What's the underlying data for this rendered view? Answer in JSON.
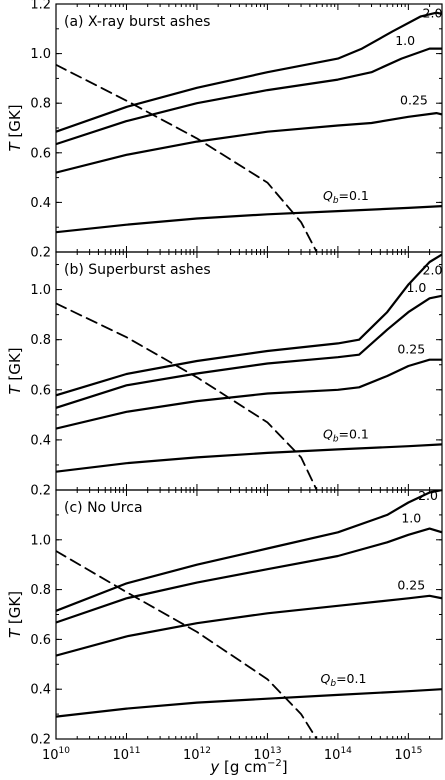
{
  "chart_data": {
    "type": "line",
    "xlabel_prefix": "y",
    "xlabel_unit": "[g cm",
    "xlabel_exp": "−2",
    "xlabel_close": "]",
    "ylabel_prefix": "T",
    "ylabel_unit": "[GK]",
    "xlog": true,
    "xlim": [
      10000000000.0,
      3000000000000000.0
    ],
    "x_ticks": [
      {
        "value": 10000000000.0,
        "exp": "10"
      },
      {
        "value": 100000000000.0,
        "exp": "11"
      },
      {
        "value": 1000000000000.0,
        "exp": "12"
      },
      {
        "value": 10000000000000.0,
        "exp": "13"
      },
      {
        "value": 100000000000000.0,
        "exp": "14"
      },
      {
        "value": 1000000000000000.0,
        "exp": "15"
      }
    ],
    "x_tick_base": "10",
    "panels": [
      {
        "title": "(a)  X-ray burst ashes",
        "ylim": [
          0.2,
          1.2
        ],
        "yticks": [
          "0.2",
          "0.4",
          "0.6",
          "0.8",
          "1.0",
          "1.2"
        ],
        "ytick_values": [
          0.2,
          0.4,
          0.6,
          0.8,
          1.0,
          1.2
        ],
        "series": [
          {
            "label": "2.0",
            "label_at": [
              2200000000000000.0,
              1.145
            ],
            "points": [
              [
                10000000000.0,
                0.685
              ],
              [
                100000000000.0,
                0.785
              ],
              [
                1000000000000.0,
                0.862
              ],
              [
                10000000000000.0,
                0.925
              ],
              [
                100000000000000.0,
                0.98
              ],
              [
                220000000000000.0,
                1.02
              ],
              [
                600000000000000.0,
                1.09
              ],
              [
                1500000000000000.0,
                1.15
              ],
              [
                2500000000000000.0,
                1.165
              ],
              [
                3000000000000000.0,
                1.16
              ]
            ]
          },
          {
            "label": "1.0",
            "label_at": [
              900000000000000.0,
              1.035
            ],
            "points": [
              [
                10000000000.0,
                0.635
              ],
              [
                100000000000.0,
                0.728
              ],
              [
                1000000000000.0,
                0.8
              ],
              [
                10000000000000.0,
                0.853
              ],
              [
                100000000000000.0,
                0.895
              ],
              [
                300000000000000.0,
                0.925
              ],
              [
                800000000000000.0,
                0.98
              ],
              [
                2000000000000000.0,
                1.02
              ],
              [
                3000000000000000.0,
                1.02
              ]
            ]
          },
          {
            "label": "0.25",
            "label_at": [
              1200000000000000.0,
              0.795
            ],
            "points": [
              [
                10000000000.0,
                0.52
              ],
              [
                100000000000.0,
                0.592
              ],
              [
                1000000000000.0,
                0.645
              ],
              [
                10000000000000.0,
                0.685
              ],
              [
                100000000000000.0,
                0.71
              ],
              [
                300000000000000.0,
                0.72
              ],
              [
                1000000000000000.0,
                0.745
              ],
              [
                2500000000000000.0,
                0.76
              ],
              [
                3000000000000000.0,
                0.755
              ]
            ]
          },
          {
            "label": "Q_b=0.1",
            "label_at": [
              130000000000000.0,
              0.41
            ],
            "points": [
              [
                10000000000.0,
                0.28
              ],
              [
                100000000000.0,
                0.31
              ],
              [
                1000000000000.0,
                0.335
              ],
              [
                10000000000000.0,
                0.352
              ],
              [
                100000000000000.0,
                0.365
              ],
              [
                1000000000000000.0,
                0.378
              ],
              [
                3000000000000000.0,
                0.385
              ]
            ]
          }
        ],
        "dashed": [
          [
            10000000000.0,
            0.955
          ],
          [
            100000000000.0,
            0.81
          ],
          [
            1000000000000.0,
            0.658
          ],
          [
            10000000000000.0,
            0.48
          ],
          [
            30000000000000.0,
            0.32
          ],
          [
            50000000000000.0,
            0.2
          ]
        ]
      },
      {
        "title": "(b)  Superburst ashes",
        "ylim": [
          0.2,
          1.15
        ],
        "yticks": [
          "0.2",
          "0.4",
          "0.6",
          "0.8",
          "1.0"
        ],
        "ytick_values": [
          0.2,
          0.4,
          0.6,
          0.8,
          1.0
        ],
        "series": [
          {
            "label": "2.0",
            "label_at": [
              2200000000000000.0,
              1.06
            ],
            "points": [
              [
                10000000000.0,
                0.578
              ],
              [
                100000000000.0,
                0.663
              ],
              [
                1000000000000.0,
                0.715
              ],
              [
                10000000000000.0,
                0.755
              ],
              [
                100000000000000.0,
                0.785
              ],
              [
                200000000000000.0,
                0.8
              ],
              [
                500000000000000.0,
                0.91
              ],
              [
                1000000000000000.0,
                1.02
              ],
              [
                2000000000000000.0,
                1.11
              ],
              [
                3000000000000000.0,
                1.14
              ]
            ]
          },
          {
            "label": "1.0",
            "label_at": [
              1300000000000000.0,
              0.99
            ],
            "points": [
              [
                10000000000.0,
                0.528
              ],
              [
                100000000000.0,
                0.618
              ],
              [
                1000000000000.0,
                0.665
              ],
              [
                10000000000000.0,
                0.705
              ],
              [
                100000000000000.0,
                0.73
              ],
              [
                200000000000000.0,
                0.74
              ],
              [
                500000000000000.0,
                0.84
              ],
              [
                1000000000000000.0,
                0.91
              ],
              [
                2000000000000000.0,
                0.965
              ],
              [
                3000000000000000.0,
                0.975
              ]
            ]
          },
          {
            "label": "0.25",
            "label_at": [
              1100000000000000.0,
              0.745
            ],
            "points": [
              [
                10000000000.0,
                0.445
              ],
              [
                100000000000.0,
                0.512
              ],
              [
                1000000000000.0,
                0.555
              ],
              [
                10000000000000.0,
                0.585
              ],
              [
                100000000000000.0,
                0.6
              ],
              [
                200000000000000.0,
                0.61
              ],
              [
                500000000000000.0,
                0.655
              ],
              [
                1000000000000000.0,
                0.695
              ],
              [
                2000000000000000.0,
                0.72
              ],
              [
                3000000000000000.0,
                0.72
              ]
            ]
          },
          {
            "label": "Q_b=0.1",
            "label_at": [
              130000000000000.0,
              0.405
            ],
            "points": [
              [
                10000000000.0,
                0.273
              ],
              [
                100000000000.0,
                0.307
              ],
              [
                1000000000000.0,
                0.33
              ],
              [
                10000000000000.0,
                0.348
              ],
              [
                100000000000000.0,
                0.362
              ],
              [
                1000000000000000.0,
                0.375
              ],
              [
                3000000000000000.0,
                0.382
              ]
            ]
          }
        ],
        "dashed": [
          [
            10000000000.0,
            0.945
          ],
          [
            100000000000.0,
            0.81
          ],
          [
            1000000000000.0,
            0.65
          ],
          [
            10000000000000.0,
            0.47
          ],
          [
            30000000000000.0,
            0.33
          ],
          [
            50000000000000.0,
            0.2
          ]
        ]
      },
      {
        "title": "(c)  No Urca",
        "ylim": [
          0.2,
          1.2
        ],
        "yticks": [
          "0.2",
          "0.4",
          "0.6",
          "0.8",
          "1.0"
        ],
        "ytick_values": [
          0.2,
          0.4,
          0.6,
          0.8,
          1.0
        ],
        "series": [
          {
            "label": "2.0",
            "label_at": [
              1900000000000000.0,
              1.16
            ],
            "points": [
              [
                10000000000.0,
                0.715
              ],
              [
                100000000000.0,
                0.825
              ],
              [
                1000000000000.0,
                0.9
              ],
              [
                10000000000000.0,
                0.965
              ],
              [
                100000000000000.0,
                1.03
              ],
              [
                500000000000000.0,
                1.1
              ],
              [
                1000000000000000.0,
                1.15
              ],
              [
                2000000000000000.0,
                1.19
              ],
              [
                3000000000000000.0,
                1.2
              ]
            ]
          },
          {
            "label": "1.0",
            "label_at": [
              1100000000000000.0,
              1.07
            ],
            "points": [
              [
                10000000000.0,
                0.668
              ],
              [
                100000000000.0,
                0.765
              ],
              [
                1000000000000.0,
                0.828
              ],
              [
                10000000000000.0,
                0.882
              ],
              [
                100000000000000.0,
                0.935
              ],
              [
                500000000000000.0,
                0.99
              ],
              [
                1000000000000000.0,
                1.02
              ],
              [
                2000000000000000.0,
                1.045
              ],
              [
                3000000000000000.0,
                1.03
              ]
            ]
          },
          {
            "label": "0.25",
            "label_at": [
              1100000000000000.0,
              0.8
            ],
            "points": [
              [
                10000000000.0,
                0.535
              ],
              [
                100000000000.0,
                0.612
              ],
              [
                1000000000000.0,
                0.665
              ],
              [
                10000000000000.0,
                0.705
              ],
              [
                100000000000000.0,
                0.735
              ],
              [
                1000000000000000.0,
                0.765
              ],
              [
                2000000000000000.0,
                0.775
              ],
              [
                3000000000000000.0,
                0.765
              ]
            ]
          },
          {
            "label": "Q_b=0.1",
            "label_at": [
              120000000000000.0,
              0.425
            ],
            "points": [
              [
                10000000000.0,
                0.29
              ],
              [
                100000000000.0,
                0.322
              ],
              [
                1000000000000.0,
                0.346
              ],
              [
                10000000000000.0,
                0.362
              ],
              [
                100000000000000.0,
                0.377
              ],
              [
                1000000000000000.0,
                0.392
              ],
              [
                3000000000000000.0,
                0.4
              ]
            ]
          }
        ],
        "dashed": [
          [
            10000000000.0,
            0.955
          ],
          [
            100000000000.0,
            0.79
          ],
          [
            1000000000000.0,
            0.63
          ],
          [
            10000000000000.0,
            0.44
          ],
          [
            30000000000000.0,
            0.3
          ],
          [
            50000000000000.0,
            0.2
          ]
        ]
      }
    ]
  }
}
